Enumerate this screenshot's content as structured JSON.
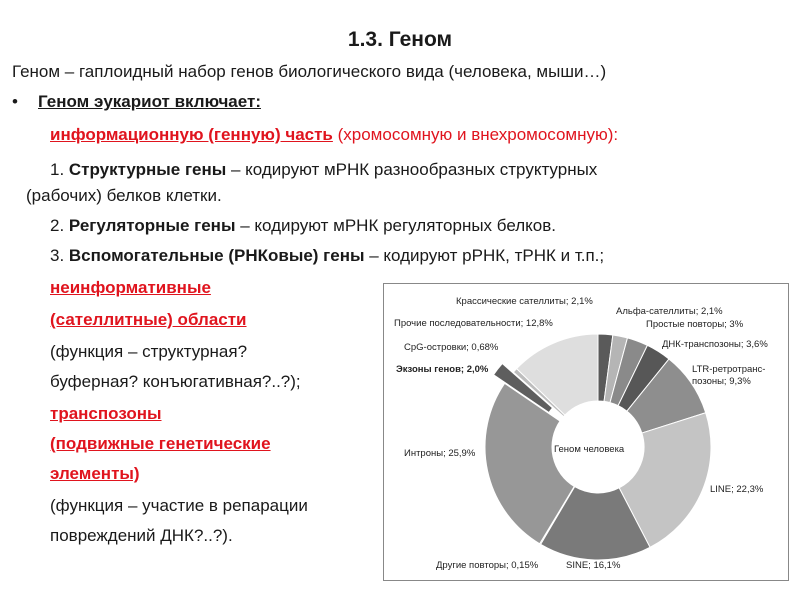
{
  "title": "1.3. Геном",
  "definition": "Геном – гаплоидный набор генов биологического вида (человека, мыши…)",
  "bullet": "Геном эукариот включает:",
  "info_part": {
    "label": "информационную (генную) часть",
    "rest": " (хромосомную и внехромосомную):"
  },
  "items": [
    {
      "num": "1. ",
      "bold": "Структурные гены",
      "rest": " – кодируют мРНК разнообразных структурных",
      "cont": "(рабочих) белков клетки."
    },
    {
      "num": "2. ",
      "bold": "Регуляторные гены",
      "rest": " – кодируют мРНК регуляторных белков."
    },
    {
      "num": "3. ",
      "bold": "Вспомогательные (РНКовые) гены",
      "rest": " – кодируют рРНК, тРНК и т.п.;"
    }
  ],
  "noninfo": {
    "line1": "неинформативные",
    "line2": "(сателлитные) области",
    "f1": "(функция – структурная?",
    "f2": "буферная? конъюгативная?..?);"
  },
  "transposons": {
    "line1": "транспозоны",
    "line2": "(подвижные генетические",
    "line3": "элементы)",
    "f1": "(функция – участие в репарации",
    "f2": "повреждений ДНК?..?)."
  },
  "colors": {
    "accent": "#e0141e"
  },
  "chart_data": {
    "type": "pie",
    "donut": true,
    "center_label": "Геном человека",
    "slices": [
      {
        "label": "Крассические сателлиты; 2,1%",
        "value": 2.1,
        "color": "#5a5a5a"
      },
      {
        "label": "Альфа-сателлиты; 2,1%",
        "value": 2.1,
        "color": "#b5b5b5"
      },
      {
        "label": "Простые повторы; 3%",
        "value": 3,
        "color": "#8a8a8a"
      },
      {
        "label": "ДНК-транспозоны; 3,6%",
        "value": 3.6,
        "color": "#575757"
      },
      {
        "label": "LTR-ретротранс-позоны; 9,3%",
        "value": 9.3,
        "color": "#8e8e8e"
      },
      {
        "label": "LINE; 22,3%",
        "value": 22.3,
        "color": "#c4c4c4"
      },
      {
        "label": "SINE; 16,1%",
        "value": 16.1,
        "color": "#7a7a7a"
      },
      {
        "label": "Другие повторы; 0,15%",
        "value": 0.15,
        "color": "#333333"
      },
      {
        "label": "Интроны; 25,9%",
        "value": 25.9,
        "color": "#979797"
      },
      {
        "label": "Экзоны генов; 2,0%",
        "value": 2.0,
        "color": "#5e5e5e",
        "exploded": true
      },
      {
        "label": "CpG-островки; 0,68%",
        "value": 0.68,
        "color": "#bdbdbd"
      },
      {
        "label": "Прочие последовательности; 12,8%",
        "value": 12.8,
        "color": "#dedede"
      }
    ]
  }
}
